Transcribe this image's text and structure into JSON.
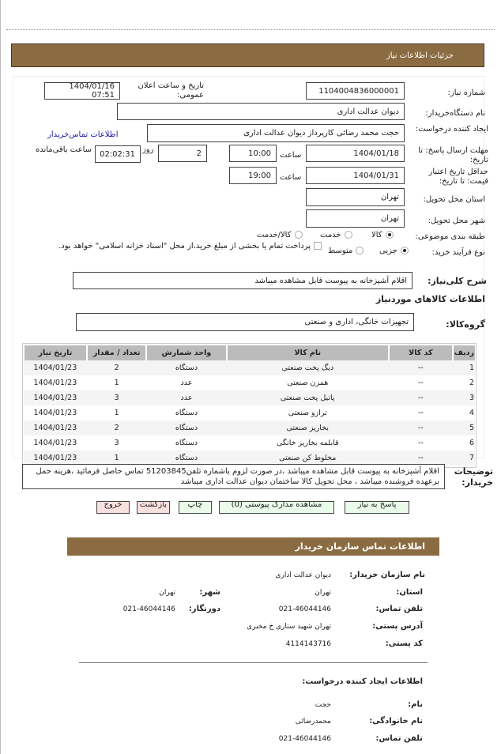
{
  "page_title": "جزئیات اطلاعات نیاز",
  "fields": {
    "need_number_label": "شماره نیاز:",
    "need_number": "1104004836000001",
    "announce_label": "تاریخ و ساعت اعلان عمومی:",
    "announce_value": "1404/01/16 07:51",
    "buyer_label": "نام دستگاه‌خریدار:",
    "buyer": "دیوان عدالت اداری",
    "creator_label": "ایجاد کننده درخواست:",
    "creator": "حجت محمد رضائی کارپرداز دیوان عدالت اداری",
    "contact_link": "اطلاعات تماس‌خریدار",
    "deadline_label": "مهلت ارسال پاسخ: تا تاریخ:",
    "deadline_date": "1404/01/18",
    "time_label": "ساعت",
    "deadline_time": "10:00",
    "days_label": "روز",
    "days": "2",
    "remaining_label": "ساعت باقی‌مانده",
    "remaining": "02:02:31",
    "validity_label": "حداقل تاریخ اعتبار قیمت: تا تاریخ:",
    "validity_date": "1404/01/31",
    "validity_time": "19:00",
    "province_label": "استان محل تحویل:",
    "province": "تهران",
    "city_label": "شهر محل تحویل:",
    "city": "تهران",
    "category_label": "طبقه بندی موضوعی:",
    "category_options": [
      "کالا",
      "خدمت",
      "کالا/خدمت"
    ],
    "category_selected": "کالا",
    "process_label": "نوع فرآیند خرید:",
    "process_options": [
      "جزیی",
      "متوسط"
    ],
    "process_selected": "جزیی",
    "treasury_note": "پرداخت تمام یا بخشی از مبلغ خرید،از محل \"اسناد خزانه اسلامی\" خواهد بود."
  },
  "summary_label": "شرح کلی‌نیاز:",
  "summary": "اقلام آشپزخانه به پیوست قابل مشاهده میباشد",
  "goods_heading": "اطلاعات کالاهای موردنیاز",
  "group_label": "گروه‌کالا:",
  "group": "تجهیزات خانگی، اداری و صنعتی",
  "table": {
    "headers": [
      "ردیف",
      "کد کالا",
      "نام کالا",
      "واحد شمارش",
      "تعداد / مقدار",
      "تاریخ نیاز"
    ],
    "rows": [
      [
        "1",
        "--",
        "دیگ پخت صنعتی",
        "دستگاه",
        "2",
        "1404/01/23"
      ],
      [
        "2",
        "--",
        "همزن صنعتی",
        "عدد",
        "1",
        "1404/01/23"
      ],
      [
        "3",
        "--",
        "پاتیل پخت صنعتی",
        "عدد",
        "3",
        "1404/01/23"
      ],
      [
        "4",
        "--",
        "ترازو صنعتی",
        "دستگاه",
        "1",
        "1404/01/23"
      ],
      [
        "5",
        "--",
        "بخارپز صنعتی",
        "دستگاه",
        "2",
        "1404/01/23"
      ],
      [
        "6",
        "--",
        "قابلمه بخارپز خانگی",
        "دستگاه",
        "3",
        "1404/01/23"
      ],
      [
        "7",
        "--",
        "مخلوط کن صنعتی",
        "دستگاه",
        "1",
        "1404/01/23"
      ]
    ]
  },
  "notes_label": "توضیحات خریدار:",
  "notes": "اقلام آشپزخانه به پیوست قابل مشاهده میباشد ،در صورت لزوم باشماره تلفن51203845 تماس حاصل فرمائید ،هزینه حمل برعهده فروشنده میباشد ، محل تحویل کالا ساختمان دیوان عدالت اداری میباشد",
  "buttons": {
    "reply": "پاسخ به نیاز",
    "attachments": "مشاهده مدارک پیوستی (0)",
    "print": "چاپ",
    "back": "بازگشت",
    "exit": "خروج"
  },
  "contact": {
    "title": "اطلاعات تماس سازمان خریدار",
    "org_label": "نام سازمان خریدار:",
    "org": "دیوان عدالت اداری",
    "province_label": "استان:",
    "province": "تهران",
    "city_label": "شهر:",
    "city": "تهران",
    "phone_label": "تلفن تماس:",
    "phone": "021-46044146",
    "fax_label": "دورنگار:",
    "fax": "021-46044146",
    "address_label": "آدرس پستی:",
    "address": "تهران شهید ستاری خ مخبری",
    "postal_label": "کد پستی:",
    "postal": "4114143716",
    "creator_heading": "اطلاعات ایجاد کننده درخواست:",
    "name_label": "نام:",
    "name": "حجت",
    "family_label": "نام خانوادگی:",
    "family": "محمدرضائی",
    "creator_phone_label": "تلفن تماس:",
    "creator_phone": "021-46044146"
  },
  "colors": {
    "header": "#8b6c42",
    "green_button": "#eafbea",
    "pink_button": "#fbe0e0",
    "link": "#1a1aa6"
  }
}
